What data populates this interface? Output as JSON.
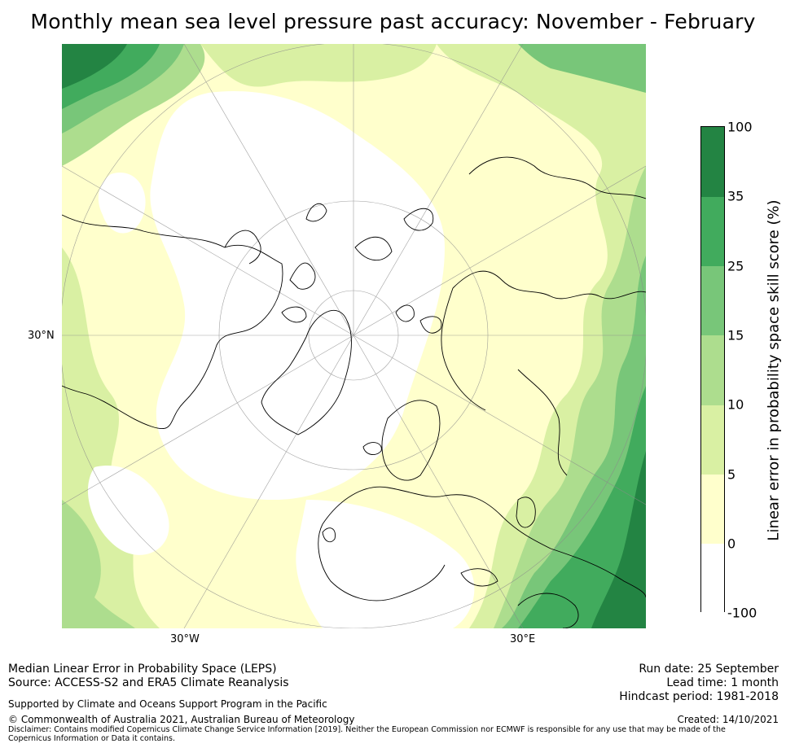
{
  "title": "Monthly mean sea level pressure past accuracy: November - February",
  "map": {
    "lat_label": "30°N",
    "lon_labels": [
      "30°W",
      "30°E"
    ]
  },
  "colorbar": {
    "label": "Linear error in probability space skill score (%)",
    "ticks": [
      "100",
      "35",
      "25",
      "15",
      "10",
      "5",
      "0",
      "-100"
    ],
    "colors": [
      "#ffffff",
      "#ffffcc",
      "#d9f0a3",
      "#addd8e",
      "#78c679",
      "#41ab5d",
      "#238443"
    ]
  },
  "footer": {
    "line1": "Median Linear Error in Probability Space (LEPS)",
    "line2": "Source: ACCESS-S2 and ERA5 Climate Reanalysis",
    "support": "Supported by Climate and Oceans Support Program in the Pacific",
    "copyright": "© Commonwealth of Australia 2021, Australian Bureau of Meteorology",
    "disclaimer": "Disclaimer: Contains modified Copernicus Climate Change Service Information [2019]. Neither the European Commission nor ECMWF is responsible for any use that may be made of the Copernicus Information or Data it contains.",
    "run_date": "Run date: 25 September",
    "lead_time": "Lead time: 1 month",
    "hindcast": "Hindcast period: 1981-2018",
    "created": "Created: 14/10/2021"
  }
}
